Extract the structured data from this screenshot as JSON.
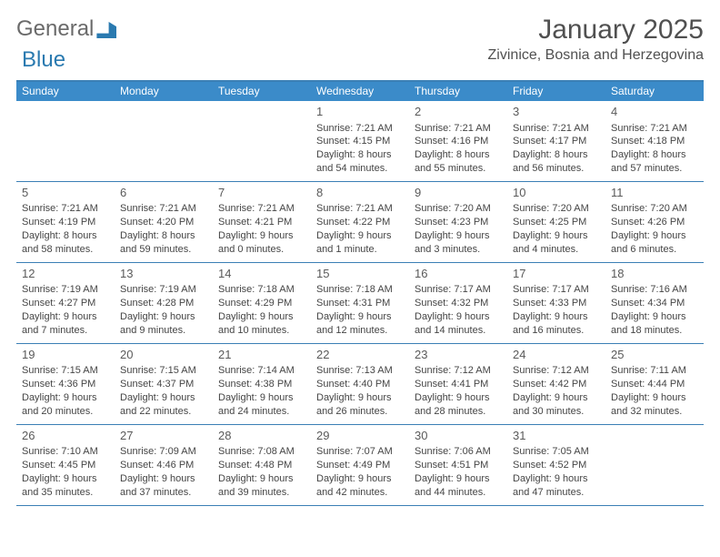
{
  "logo": {
    "part1": "General",
    "part2": "Blue"
  },
  "header": {
    "month_title": "January 2025",
    "location": "Zivinice, Bosnia and Herzegovina"
  },
  "days_of_week": [
    "Sunday",
    "Monday",
    "Tuesday",
    "Wednesday",
    "Thursday",
    "Friday",
    "Saturday"
  ],
  "colors": {
    "header_bar": "#3b8bc9",
    "divider": "#3b7fb5",
    "text": "#454545",
    "title_text": "#505050"
  },
  "typography": {
    "month_fontsize": 30,
    "location_fontsize": 16,
    "dow_fontsize": 12,
    "cell_fontsize": 11,
    "daynum_fontsize": 13
  },
  "weeks": [
    [
      {
        "blank": true
      },
      {
        "blank": true
      },
      {
        "blank": true
      },
      {
        "day": "1",
        "sunrise": "Sunrise: 7:21 AM",
        "sunset": "Sunset: 4:15 PM",
        "daylight1": "Daylight: 8 hours",
        "daylight2": "and 54 minutes."
      },
      {
        "day": "2",
        "sunrise": "Sunrise: 7:21 AM",
        "sunset": "Sunset: 4:16 PM",
        "daylight1": "Daylight: 8 hours",
        "daylight2": "and 55 minutes."
      },
      {
        "day": "3",
        "sunrise": "Sunrise: 7:21 AM",
        "sunset": "Sunset: 4:17 PM",
        "daylight1": "Daylight: 8 hours",
        "daylight2": "and 56 minutes."
      },
      {
        "day": "4",
        "sunrise": "Sunrise: 7:21 AM",
        "sunset": "Sunset: 4:18 PM",
        "daylight1": "Daylight: 8 hours",
        "daylight2": "and 57 minutes."
      }
    ],
    [
      {
        "day": "5",
        "sunrise": "Sunrise: 7:21 AM",
        "sunset": "Sunset: 4:19 PM",
        "daylight1": "Daylight: 8 hours",
        "daylight2": "and 58 minutes."
      },
      {
        "day": "6",
        "sunrise": "Sunrise: 7:21 AM",
        "sunset": "Sunset: 4:20 PM",
        "daylight1": "Daylight: 8 hours",
        "daylight2": "and 59 minutes."
      },
      {
        "day": "7",
        "sunrise": "Sunrise: 7:21 AM",
        "sunset": "Sunset: 4:21 PM",
        "daylight1": "Daylight: 9 hours",
        "daylight2": "and 0 minutes."
      },
      {
        "day": "8",
        "sunrise": "Sunrise: 7:21 AM",
        "sunset": "Sunset: 4:22 PM",
        "daylight1": "Daylight: 9 hours",
        "daylight2": "and 1 minute."
      },
      {
        "day": "9",
        "sunrise": "Sunrise: 7:20 AM",
        "sunset": "Sunset: 4:23 PM",
        "daylight1": "Daylight: 9 hours",
        "daylight2": "and 3 minutes."
      },
      {
        "day": "10",
        "sunrise": "Sunrise: 7:20 AM",
        "sunset": "Sunset: 4:25 PM",
        "daylight1": "Daylight: 9 hours",
        "daylight2": "and 4 minutes."
      },
      {
        "day": "11",
        "sunrise": "Sunrise: 7:20 AM",
        "sunset": "Sunset: 4:26 PM",
        "daylight1": "Daylight: 9 hours",
        "daylight2": "and 6 minutes."
      }
    ],
    [
      {
        "day": "12",
        "sunrise": "Sunrise: 7:19 AM",
        "sunset": "Sunset: 4:27 PM",
        "daylight1": "Daylight: 9 hours",
        "daylight2": "and 7 minutes."
      },
      {
        "day": "13",
        "sunrise": "Sunrise: 7:19 AM",
        "sunset": "Sunset: 4:28 PM",
        "daylight1": "Daylight: 9 hours",
        "daylight2": "and 9 minutes."
      },
      {
        "day": "14",
        "sunrise": "Sunrise: 7:18 AM",
        "sunset": "Sunset: 4:29 PM",
        "daylight1": "Daylight: 9 hours",
        "daylight2": "and 10 minutes."
      },
      {
        "day": "15",
        "sunrise": "Sunrise: 7:18 AM",
        "sunset": "Sunset: 4:31 PM",
        "daylight1": "Daylight: 9 hours",
        "daylight2": "and 12 minutes."
      },
      {
        "day": "16",
        "sunrise": "Sunrise: 7:17 AM",
        "sunset": "Sunset: 4:32 PM",
        "daylight1": "Daylight: 9 hours",
        "daylight2": "and 14 minutes."
      },
      {
        "day": "17",
        "sunrise": "Sunrise: 7:17 AM",
        "sunset": "Sunset: 4:33 PM",
        "daylight1": "Daylight: 9 hours",
        "daylight2": "and 16 minutes."
      },
      {
        "day": "18",
        "sunrise": "Sunrise: 7:16 AM",
        "sunset": "Sunset: 4:34 PM",
        "daylight1": "Daylight: 9 hours",
        "daylight2": "and 18 minutes."
      }
    ],
    [
      {
        "day": "19",
        "sunrise": "Sunrise: 7:15 AM",
        "sunset": "Sunset: 4:36 PM",
        "daylight1": "Daylight: 9 hours",
        "daylight2": "and 20 minutes."
      },
      {
        "day": "20",
        "sunrise": "Sunrise: 7:15 AM",
        "sunset": "Sunset: 4:37 PM",
        "daylight1": "Daylight: 9 hours",
        "daylight2": "and 22 minutes."
      },
      {
        "day": "21",
        "sunrise": "Sunrise: 7:14 AM",
        "sunset": "Sunset: 4:38 PM",
        "daylight1": "Daylight: 9 hours",
        "daylight2": "and 24 minutes."
      },
      {
        "day": "22",
        "sunrise": "Sunrise: 7:13 AM",
        "sunset": "Sunset: 4:40 PM",
        "daylight1": "Daylight: 9 hours",
        "daylight2": "and 26 minutes."
      },
      {
        "day": "23",
        "sunrise": "Sunrise: 7:12 AM",
        "sunset": "Sunset: 4:41 PM",
        "daylight1": "Daylight: 9 hours",
        "daylight2": "and 28 minutes."
      },
      {
        "day": "24",
        "sunrise": "Sunrise: 7:12 AM",
        "sunset": "Sunset: 4:42 PM",
        "daylight1": "Daylight: 9 hours",
        "daylight2": "and 30 minutes."
      },
      {
        "day": "25",
        "sunrise": "Sunrise: 7:11 AM",
        "sunset": "Sunset: 4:44 PM",
        "daylight1": "Daylight: 9 hours",
        "daylight2": "and 32 minutes."
      }
    ],
    [
      {
        "day": "26",
        "sunrise": "Sunrise: 7:10 AM",
        "sunset": "Sunset: 4:45 PM",
        "daylight1": "Daylight: 9 hours",
        "daylight2": "and 35 minutes."
      },
      {
        "day": "27",
        "sunrise": "Sunrise: 7:09 AM",
        "sunset": "Sunset: 4:46 PM",
        "daylight1": "Daylight: 9 hours",
        "daylight2": "and 37 minutes."
      },
      {
        "day": "28",
        "sunrise": "Sunrise: 7:08 AM",
        "sunset": "Sunset: 4:48 PM",
        "daylight1": "Daylight: 9 hours",
        "daylight2": "and 39 minutes."
      },
      {
        "day": "29",
        "sunrise": "Sunrise: 7:07 AM",
        "sunset": "Sunset: 4:49 PM",
        "daylight1": "Daylight: 9 hours",
        "daylight2": "and 42 minutes."
      },
      {
        "day": "30",
        "sunrise": "Sunrise: 7:06 AM",
        "sunset": "Sunset: 4:51 PM",
        "daylight1": "Daylight: 9 hours",
        "daylight2": "and 44 minutes."
      },
      {
        "day": "31",
        "sunrise": "Sunrise: 7:05 AM",
        "sunset": "Sunset: 4:52 PM",
        "daylight1": "Daylight: 9 hours",
        "daylight2": "and 47 minutes."
      },
      {
        "blank": true
      }
    ]
  ]
}
